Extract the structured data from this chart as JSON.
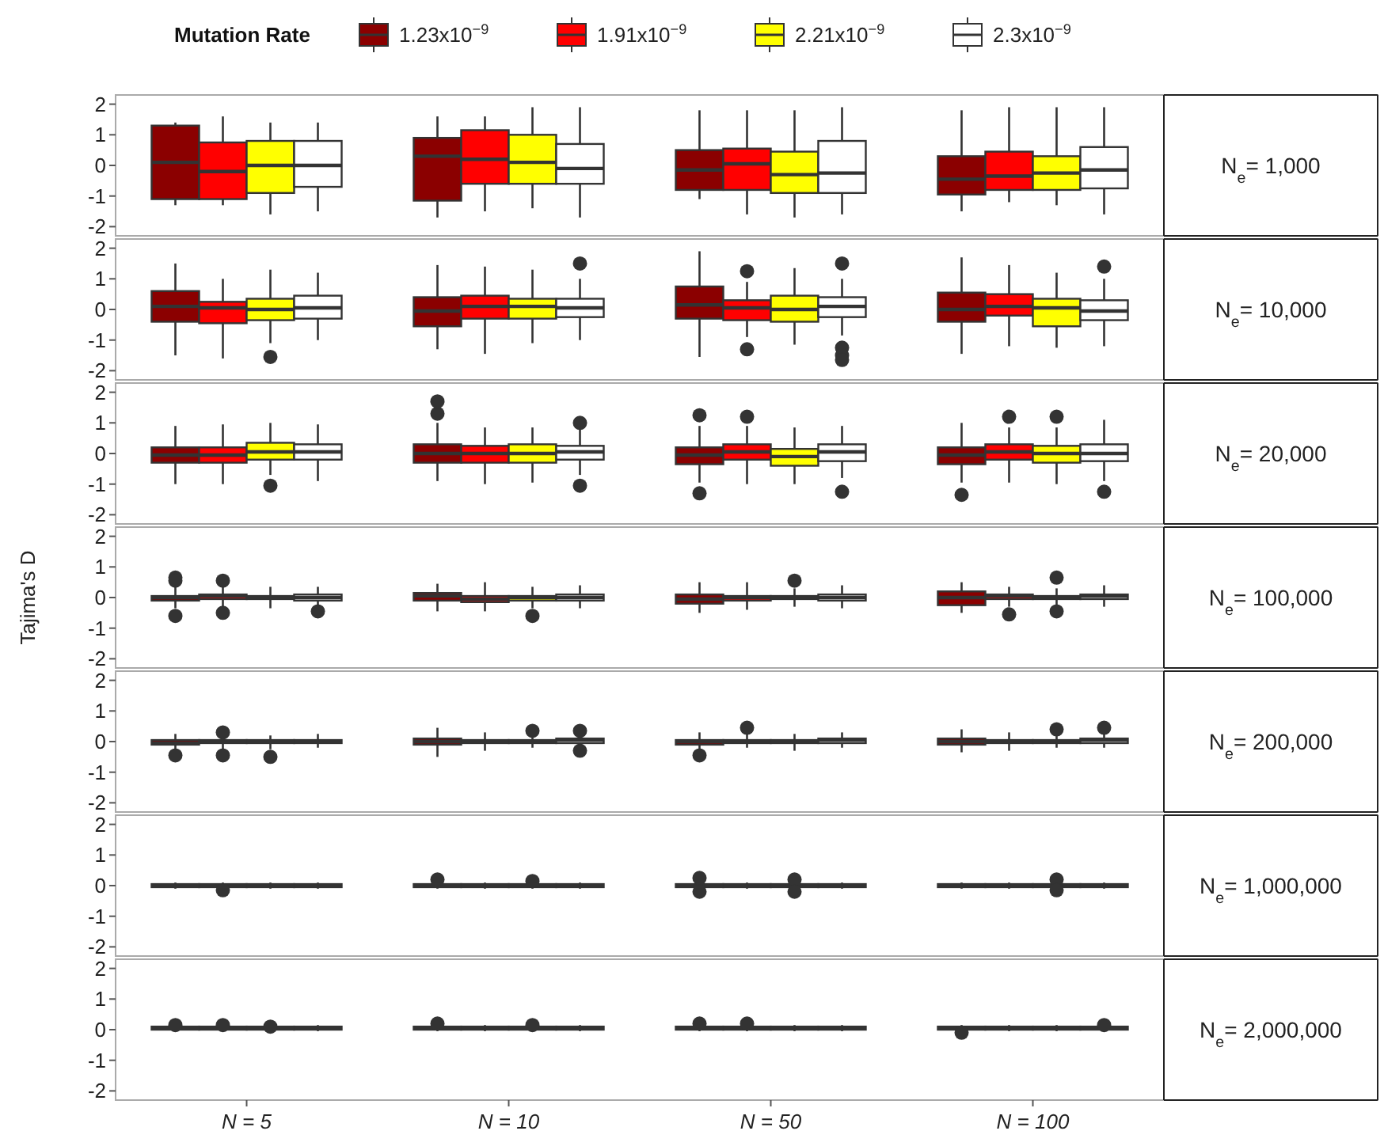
{
  "chart_data": [
    {
      "type": "box",
      "title": "N$_{e}$= 1,000",
      "legend_title": "Mutation Rate",
      "legend": "top",
      "tick_labels": "y",
      "categories": [
        "N = 5",
        "N = 10",
        "N = 50",
        "N = 100"
      ],
      "ylim": [
        -2.3,
        2.3
      ],
      "yticks": [
        -2,
        -1,
        0,
        1,
        2
      ],
      "series": [
        {
          "name": "1.23x10$^{−9}$",
          "color": "#8b0000",
          "boxes": [
            {
              "low": -1.3,
              "q1": -1.1,
              "median": 0.1,
              "q3": 1.3,
              "high": 1.4
            },
            {
              "low": -1.7,
              "q1": -1.15,
              "median": 0.3,
              "q3": 0.9,
              "high": 1.6
            },
            {
              "low": -1.1,
              "q1": -0.8,
              "median": -0.15,
              "q3": 0.5,
              "high": 1.8
            },
            {
              "low": -1.5,
              "q1": -0.95,
              "median": -0.45,
              "q3": 0.3,
              "high": 1.8
            }
          ]
        },
        {
          "name": "1.91x10$^{−9}$",
          "color": "#ff0000",
          "boxes": [
            {
              "low": -1.3,
              "q1": -1.1,
              "median": -0.2,
              "q3": 0.75,
              "high": 1.6
            },
            {
              "low": -1.5,
              "q1": -0.6,
              "median": 0.2,
              "q3": 1.15,
              "high": 1.6
            },
            {
              "low": -1.6,
              "q1": -0.8,
              "median": 0.05,
              "q3": 0.55,
              "high": 1.8
            },
            {
              "low": -1.2,
              "q1": -0.8,
              "median": -0.35,
              "q3": 0.45,
              "high": 1.9
            }
          ]
        },
        {
          "name": "2.21x10$^{−9}$",
          "color": "#ffff00",
          "boxes": [
            {
              "low": -1.6,
              "q1": -0.9,
              "median": 0,
              "q3": 0.8,
              "high": 1.4
            },
            {
              "low": -1.4,
              "q1": -0.6,
              "median": 0.1,
              "q3": 1,
              "high": 1.9
            },
            {
              "low": -1.7,
              "q1": -0.9,
              "median": -0.3,
              "q3": 0.45,
              "high": 1.8
            },
            {
              "low": -1.3,
              "q1": -0.8,
              "median": -0.25,
              "q3": 0.3,
              "high": 1.9
            }
          ]
        },
        {
          "name": "2.3x10$^{−9}$",
          "color": "#ffffff",
          "boxes": [
            {
              "low": -1.5,
              "q1": -0.7,
              "median": 0,
              "q3": 0.8,
              "high": 1.4
            },
            {
              "low": -1.7,
              "q1": -0.6,
              "median": -0.1,
              "q3": 0.7,
              "high": 1.9
            },
            {
              "low": -1.6,
              "q1": -0.9,
              "median": -0.25,
              "q3": 0.8,
              "high": 1.9
            },
            {
              "low": -1.6,
              "q1": -0.75,
              "median": -0.15,
              "q3": 0.6,
              "high": 1.9
            }
          ]
        }
      ]
    },
    {
      "type": "box",
      "title": "N$_{e}$= 10,000",
      "tick_labels": "y",
      "categories": [
        "N = 5",
        "N = 10",
        "N = 50",
        "N = 100"
      ],
      "ylim": [
        -2.3,
        2.3
      ],
      "yticks": [
        -2,
        -1,
        0,
        1,
        2
      ],
      "series": [
        {
          "color": "#8b0000",
          "boxes": [
            {
              "low": -1.5,
              "q1": -0.4,
              "median": 0.1,
              "q3": 0.6,
              "high": 1.5
            },
            {
              "low": -1.3,
              "q1": -0.55,
              "median": -0.05,
              "q3": 0.4,
              "high": 1.45
            },
            {
              "low": -1.55,
              "q1": -0.3,
              "median": 0.15,
              "q3": 0.75,
              "high": 1.9
            },
            {
              "low": -1.45,
              "q1": -0.4,
              "median": 0,
              "q3": 0.55,
              "high": 1.7
            }
          ]
        },
        {
          "color": "#ff0000",
          "boxes": [
            {
              "low": -1.6,
              "q1": -0.45,
              "median": 0.05,
              "q3": 0.25,
              "high": 1
            },
            {
              "low": -1.45,
              "q1": -0.3,
              "median": 0.1,
              "q3": 0.45,
              "high": 1.4
            },
            {
              "low": -0.9,
              "q1": -0.35,
              "median": 0.05,
              "q3": 0.3,
              "high": 0.9,
              "outliers": [
                1.25,
                -1.3
              ]
            },
            {
              "low": -1.2,
              "q1": -0.2,
              "median": 0.1,
              "q3": 0.5,
              "high": 1.45
            }
          ]
        },
        {
          "color": "#ffff00",
          "boxes": [
            {
              "low": -1.1,
              "q1": -0.35,
              "median": 0,
              "q3": 0.35,
              "high": 1.3,
              "outliers": [
                -1.55
              ]
            },
            {
              "low": -1.1,
              "q1": -0.3,
              "median": 0.1,
              "q3": 0.35,
              "high": 1.3
            },
            {
              "low": -1.15,
              "q1": -0.4,
              "median": 0,
              "q3": 0.45,
              "high": 1.35
            },
            {
              "low": -1.25,
              "q1": -0.55,
              "median": 0.05,
              "q3": 0.35,
              "high": 1.2
            }
          ]
        },
        {
          "color": "#ffffff",
          "boxes": [
            {
              "low": -1,
              "q1": -0.3,
              "median": 0.05,
              "q3": 0.45,
              "high": 1.2
            },
            {
              "low": -1,
              "q1": -0.25,
              "median": 0.05,
              "q3": 0.35,
              "high": 1,
              "outliers": [
                1.5
              ]
            },
            {
              "low": -0.85,
              "q1": -0.25,
              "median": 0.1,
              "q3": 0.4,
              "high": 1,
              "outliers": [
                1.5,
                -1.25,
                -1.5,
                -1.65
              ]
            },
            {
              "low": -1.2,
              "q1": -0.35,
              "median": -0.05,
              "q3": 0.3,
              "high": 1,
              "outliers": [
                1.4
              ]
            }
          ]
        }
      ]
    },
    {
      "type": "box",
      "title": "N$_{e}$= 20,000",
      "tick_labels": "y",
      "categories": [
        "N = 5",
        "N = 10",
        "N = 50",
        "N = 100"
      ],
      "ylim": [
        -2.3,
        2.3
      ],
      "yticks": [
        -2,
        -1,
        0,
        1,
        2
      ],
      "series": [
        {
          "color": "#8b0000",
          "boxes": [
            {
              "low": -1,
              "q1": -0.3,
              "median": -0.05,
              "q3": 0.2,
              "high": 0.9
            },
            {
              "low": -0.9,
              "q1": -0.3,
              "median": 0,
              "q3": 0.3,
              "high": 1,
              "outliers": [
                1.3,
                1.7
              ]
            },
            {
              "low": -0.95,
              "q1": -0.35,
              "median": -0.05,
              "q3": 0.2,
              "high": 0.9,
              "outliers": [
                1.25,
                -1.3
              ]
            },
            {
              "low": -0.95,
              "q1": -0.35,
              "median": -0.05,
              "q3": 0.2,
              "high": 1,
              "outliers": [
                -1.35
              ]
            }
          ]
        },
        {
          "color": "#ff0000",
          "boxes": [
            {
              "low": -1,
              "q1": -0.3,
              "median": -0.05,
              "q3": 0.2,
              "high": 0.95
            },
            {
              "low": -1,
              "q1": -0.3,
              "median": 0,
              "q3": 0.25,
              "high": 0.85
            },
            {
              "low": -1,
              "q1": -0.2,
              "median": 0.05,
              "q3": 0.3,
              "high": 0.9,
              "outliers": [
                1.2
              ]
            },
            {
              "low": -0.95,
              "q1": -0.2,
              "median": 0.05,
              "q3": 0.3,
              "high": 0.85,
              "outliers": [
                1.2
              ]
            }
          ]
        },
        {
          "color": "#ffff00",
          "boxes": [
            {
              "low": -0.7,
              "q1": -0.2,
              "median": 0.05,
              "q3": 0.35,
              "high": 1,
              "outliers": [
                -1.05
              ]
            },
            {
              "low": -0.95,
              "q1": -0.3,
              "median": 0,
              "q3": 0.3,
              "high": 0.85
            },
            {
              "low": -1,
              "q1": -0.4,
              "median": -0.1,
              "q3": 0.15,
              "high": 0.85
            },
            {
              "low": -1,
              "q1": -0.3,
              "median": 0,
              "q3": 0.25,
              "high": 0.85,
              "outliers": [
                1.2
              ]
            }
          ]
        },
        {
          "color": "#ffffff",
          "boxes": [
            {
              "low": -0.9,
              "q1": -0.2,
              "median": 0.05,
              "q3": 0.3,
              "high": 0.95
            },
            {
              "low": -0.7,
              "q1": -0.2,
              "median": 0.05,
              "q3": 0.25,
              "high": 0.8,
              "outliers": [
                1,
                -1.05
              ]
            },
            {
              "low": -0.8,
              "q1": -0.25,
              "median": 0.05,
              "q3": 0.3,
              "high": 0.9,
              "outliers": [
                -1.25
              ]
            },
            {
              "low": -0.9,
              "q1": -0.25,
              "median": 0,
              "q3": 0.3,
              "high": 1.1,
              "outliers": [
                -1.25
              ]
            }
          ]
        }
      ]
    },
    {
      "type": "box",
      "title": "N$_{e}$= 100,000",
      "ylabel": "Tajima's D",
      "tick_labels": "y",
      "categories": [
        "N = 5",
        "N = 10",
        "N = 50",
        "N = 100"
      ],
      "ylim": [
        -2.3,
        2.3
      ],
      "yticks": [
        -2,
        -1,
        0,
        1,
        2
      ],
      "series": [
        {
          "color": "#8b0000",
          "boxes": [
            {
              "low": -0.35,
              "q1": -0.1,
              "median": 0,
              "q3": 0.05,
              "high": 0.35,
              "outliers": [
                0.65,
                0.55,
                -0.6
              ]
            },
            {
              "low": -0.45,
              "q1": -0.1,
              "median": 0.05,
              "q3": 0.15,
              "high": 0.45
            },
            {
              "low": -0.5,
              "q1": -0.2,
              "median": -0.05,
              "q3": 0.1,
              "high": 0.5
            },
            {
              "low": -0.5,
              "q1": -0.25,
              "median": 0,
              "q3": 0.2,
              "high": 0.5
            }
          ]
        },
        {
          "color": "#ff0000",
          "boxes": [
            {
              "low": -0.3,
              "q1": -0.05,
              "median": 0.05,
              "q3": 0.1,
              "high": 0.35,
              "outliers": [
                0.55,
                -0.5
              ]
            },
            {
              "low": -0.45,
              "q1": -0.15,
              "median": -0.05,
              "q3": 0.05,
              "high": 0.5
            },
            {
              "low": -0.4,
              "q1": -0.1,
              "median": 0,
              "q3": 0.05,
              "high": 0.5
            },
            {
              "low": -0.3,
              "q1": -0.05,
              "median": 0.05,
              "q3": 0.1,
              "high": 0.35,
              "outliers": [
                -0.55
              ]
            }
          ]
        },
        {
          "color": "#ffff00",
          "boxes": [
            {
              "low": -0.35,
              "q1": -0.05,
              "median": 0,
              "q3": 0.05,
              "high": 0.35
            },
            {
              "low": -0.35,
              "q1": -0.1,
              "median": 0,
              "q3": 0.05,
              "high": 0.35,
              "outliers": [
                -0.6
              ]
            },
            {
              "low": -0.3,
              "q1": -0.05,
              "median": 0,
              "q3": 0.05,
              "high": 0.3,
              "outliers": [
                0.55
              ]
            },
            {
              "low": -0.3,
              "q1": -0.05,
              "median": 0,
              "q3": 0.05,
              "high": 0.3,
              "outliers": [
                0.65,
                -0.45
              ]
            }
          ]
        },
        {
          "color": "#ffffff",
          "boxes": [
            {
              "low": -0.3,
              "q1": -0.1,
              "median": 0,
              "q3": 0.1,
              "high": 0.35,
              "outliers": [
                -0.45
              ]
            },
            {
              "low": -0.35,
              "q1": -0.1,
              "median": 0,
              "q3": 0.1,
              "high": 0.4
            },
            {
              "low": -0.35,
              "q1": -0.1,
              "median": 0,
              "q3": 0.1,
              "high": 0.4
            },
            {
              "low": -0.3,
              "q1": -0.05,
              "median": 0.05,
              "q3": 0.1,
              "high": 0.4
            }
          ]
        }
      ]
    },
    {
      "type": "box",
      "title": "N$_{e}$= 200,000",
      "tick_labels": "y",
      "categories": [
        "N = 5",
        "N = 10",
        "N = 50",
        "N = 100"
      ],
      "ylim": [
        -2.3,
        2.3
      ],
      "yticks": [
        -2,
        -1,
        0,
        1,
        2
      ],
      "series": [
        {
          "color": "#8b0000",
          "boxes": [
            {
              "low": -0.3,
              "q1": -0.1,
              "median": -0.05,
              "q3": 0.05,
              "high": 0.25,
              "outliers": [
                -0.45
              ]
            },
            {
              "low": -0.5,
              "q1": -0.1,
              "median": 0,
              "q3": 0.1,
              "high": 0.45
            },
            {
              "low": -0.3,
              "q1": -0.1,
              "median": 0,
              "q3": 0.05,
              "high": 0.3,
              "outliers": [
                -0.45
              ]
            },
            {
              "low": -0.35,
              "q1": -0.1,
              "median": 0,
              "q3": 0.1,
              "high": 0.4
            }
          ]
        },
        {
          "color": "#ff0000",
          "boxes": [
            {
              "low": -0.25,
              "q1": -0.05,
              "median": 0,
              "q3": 0.05,
              "high": 0.25,
              "outliers": [
                0.3,
                -0.45
              ]
            },
            {
              "low": -0.3,
              "q1": -0.05,
              "median": 0,
              "q3": 0.05,
              "high": 0.3
            },
            {
              "low": -0.2,
              "q1": -0.05,
              "median": 0,
              "q3": 0.05,
              "high": 0.25,
              "outliers": [
                0.45
              ]
            },
            {
              "low": -0.3,
              "q1": -0.05,
              "median": 0,
              "q3": 0.05,
              "high": 0.3
            }
          ]
        },
        {
          "color": "#ffff00",
          "boxes": [
            {
              "low": -0.25,
              "q1": -0.05,
              "median": 0,
              "q3": 0.05,
              "high": 0.2,
              "outliers": [
                -0.5
              ]
            },
            {
              "low": -0.2,
              "q1": -0.05,
              "median": 0,
              "q3": 0.05,
              "high": 0.2,
              "outliers": [
                0.35
              ]
            },
            {
              "low": -0.3,
              "q1": -0.05,
              "median": 0,
              "q3": 0.05,
              "high": 0.25
            },
            {
              "low": -0.2,
              "q1": -0.05,
              "median": 0,
              "q3": 0.05,
              "high": 0.25,
              "outliers": [
                0.4
              ]
            }
          ]
        },
        {
          "color": "#ffffff",
          "boxes": [
            {
              "low": -0.2,
              "q1": -0.05,
              "median": 0,
              "q3": 0.05,
              "high": 0.25
            },
            {
              "low": -0.2,
              "q1": -0.05,
              "median": 0.05,
              "q3": 0.1,
              "high": 0.2,
              "outliers": [
                0.35,
                -0.3
              ]
            },
            {
              "low": -0.2,
              "q1": -0.05,
              "median": 0.05,
              "q3": 0.1,
              "high": 0.3
            },
            {
              "low": -0.2,
              "q1": -0.05,
              "median": 0.05,
              "q3": 0.1,
              "high": 0.25,
              "outliers": [
                0.45
              ]
            }
          ]
        }
      ]
    },
    {
      "type": "box",
      "title": "N$_{e}$= 1,000,000",
      "tick_labels": "y",
      "categories": [
        "N = 5",
        "N = 10",
        "N = 50",
        "N = 100"
      ],
      "ylim": [
        -2.3,
        2.3
      ],
      "yticks": [
        -2,
        -1,
        0,
        1,
        2
      ],
      "series": [
        {
          "color": "#8b0000",
          "boxes": [
            {
              "low": -0.1,
              "q1": -0.05,
              "median": 0,
              "q3": 0.05,
              "high": 0.1
            },
            {
              "low": -0.1,
              "q1": -0.05,
              "median": 0,
              "q3": 0.05,
              "high": 0.1,
              "outliers": [
                0.2
              ]
            },
            {
              "low": -0.1,
              "q1": -0.05,
              "median": 0,
              "q3": 0.05,
              "high": 0.1,
              "outliers": [
                0.25,
                -0.2
              ]
            },
            {
              "low": -0.1,
              "q1": -0.05,
              "median": 0,
              "q3": 0.05,
              "high": 0.1
            }
          ]
        },
        {
          "color": "#ff0000",
          "boxes": [
            {
              "low": -0.1,
              "q1": -0.05,
              "median": 0,
              "q3": 0.05,
              "high": 0.1,
              "outliers": [
                -0.15
              ]
            },
            {
              "low": -0.1,
              "q1": -0.05,
              "median": 0,
              "q3": 0.05,
              "high": 0.1
            },
            {
              "low": -0.1,
              "q1": -0.05,
              "median": 0,
              "q3": 0.05,
              "high": 0.1
            },
            {
              "low": -0.1,
              "q1": -0.05,
              "median": 0,
              "q3": 0.05,
              "high": 0.1
            }
          ]
        },
        {
          "color": "#ffff00",
          "boxes": [
            {
              "low": -0.1,
              "q1": -0.05,
              "median": 0,
              "q3": 0.05,
              "high": 0.1
            },
            {
              "low": -0.1,
              "q1": -0.05,
              "median": 0,
              "q3": 0.05,
              "high": 0.1,
              "outliers": [
                0.15
              ]
            },
            {
              "low": -0.1,
              "q1": -0.05,
              "median": 0,
              "q3": 0.05,
              "high": 0.1,
              "outliers": [
                0.2,
                -0.2
              ]
            },
            {
              "low": -0.1,
              "q1": -0.05,
              "median": 0,
              "q3": 0.05,
              "high": 0.1,
              "outliers": [
                0.2,
                -0.15
              ]
            }
          ]
        },
        {
          "color": "#ffffff",
          "boxes": [
            {
              "low": -0.1,
              "q1": -0.05,
              "median": 0,
              "q3": 0.05,
              "high": 0.1
            },
            {
              "low": -0.1,
              "q1": -0.05,
              "median": 0,
              "q3": 0.05,
              "high": 0.1
            },
            {
              "low": -0.1,
              "q1": -0.05,
              "median": 0,
              "q3": 0.05,
              "high": 0.1
            },
            {
              "low": -0.1,
              "q1": -0.05,
              "median": 0,
              "q3": 0.05,
              "high": 0.1
            }
          ]
        }
      ]
    },
    {
      "type": "box",
      "title": "N$_{e}$= 2,000,000",
      "categories": [
        "N = 5",
        "N = 10",
        "N = 50",
        "N = 100"
      ],
      "ylim": [
        -2.3,
        2.3
      ],
      "yticks": [
        -2,
        -1,
        0,
        1,
        2
      ],
      "series": [
        {
          "color": "#8b0000",
          "boxes": [
            {
              "low": -0.05,
              "q1": 0,
              "median": 0.05,
              "q3": 0.1,
              "high": 0.15,
              "outliers": [
                0.15
              ]
            },
            {
              "low": -0.05,
              "q1": 0,
              "median": 0.05,
              "q3": 0.1,
              "high": 0.15,
              "outliers": [
                0.2
              ]
            },
            {
              "low": -0.05,
              "q1": 0,
              "median": 0.05,
              "q3": 0.1,
              "high": 0.15,
              "outliers": [
                0.2
              ]
            },
            {
              "low": -0.05,
              "q1": 0,
              "median": 0.05,
              "q3": 0.1,
              "high": 0.15,
              "outliers": [
                -0.1
              ]
            }
          ]
        },
        {
          "color": "#ff0000",
          "boxes": [
            {
              "low": -0.05,
              "q1": 0,
              "median": 0.05,
              "q3": 0.1,
              "high": 0.15,
              "outliers": [
                0.15
              ]
            },
            {
              "low": -0.05,
              "q1": 0,
              "median": 0.05,
              "q3": 0.1,
              "high": 0.15
            },
            {
              "low": -0.05,
              "q1": 0,
              "median": 0.05,
              "q3": 0.1,
              "high": 0.15,
              "outliers": [
                0.2
              ]
            },
            {
              "low": -0.05,
              "q1": 0,
              "median": 0.05,
              "q3": 0.1,
              "high": 0.15
            }
          ]
        },
        {
          "color": "#ffff00",
          "boxes": [
            {
              "low": -0.05,
              "q1": 0,
              "median": 0.05,
              "q3": 0.1,
              "high": 0.15,
              "outliers": [
                0.1
              ]
            },
            {
              "low": -0.05,
              "q1": 0,
              "median": 0.05,
              "q3": 0.1,
              "high": 0.15,
              "outliers": [
                0.15
              ]
            },
            {
              "low": -0.05,
              "q1": 0,
              "median": 0.05,
              "q3": 0.1,
              "high": 0.15
            },
            {
              "low": -0.05,
              "q1": 0,
              "median": 0.05,
              "q3": 0.1,
              "high": 0.15
            }
          ]
        },
        {
          "color": "#ffffff",
          "boxes": [
            {
              "low": -0.05,
              "q1": 0,
              "median": 0.05,
              "q3": 0.1,
              "high": 0.15
            },
            {
              "low": -0.05,
              "q1": 0,
              "median": 0.05,
              "q3": 0.1,
              "high": 0.15
            },
            {
              "low": -0.05,
              "q1": 0,
              "median": 0.05,
              "q3": 0.1,
              "high": 0.15
            },
            {
              "low": -0.05,
              "q1": 0,
              "median": 0.05,
              "q3": 0.1,
              "high": 0.15,
              "outliers": [
                0.15
              ]
            }
          ]
        }
      ]
    }
  ]
}
